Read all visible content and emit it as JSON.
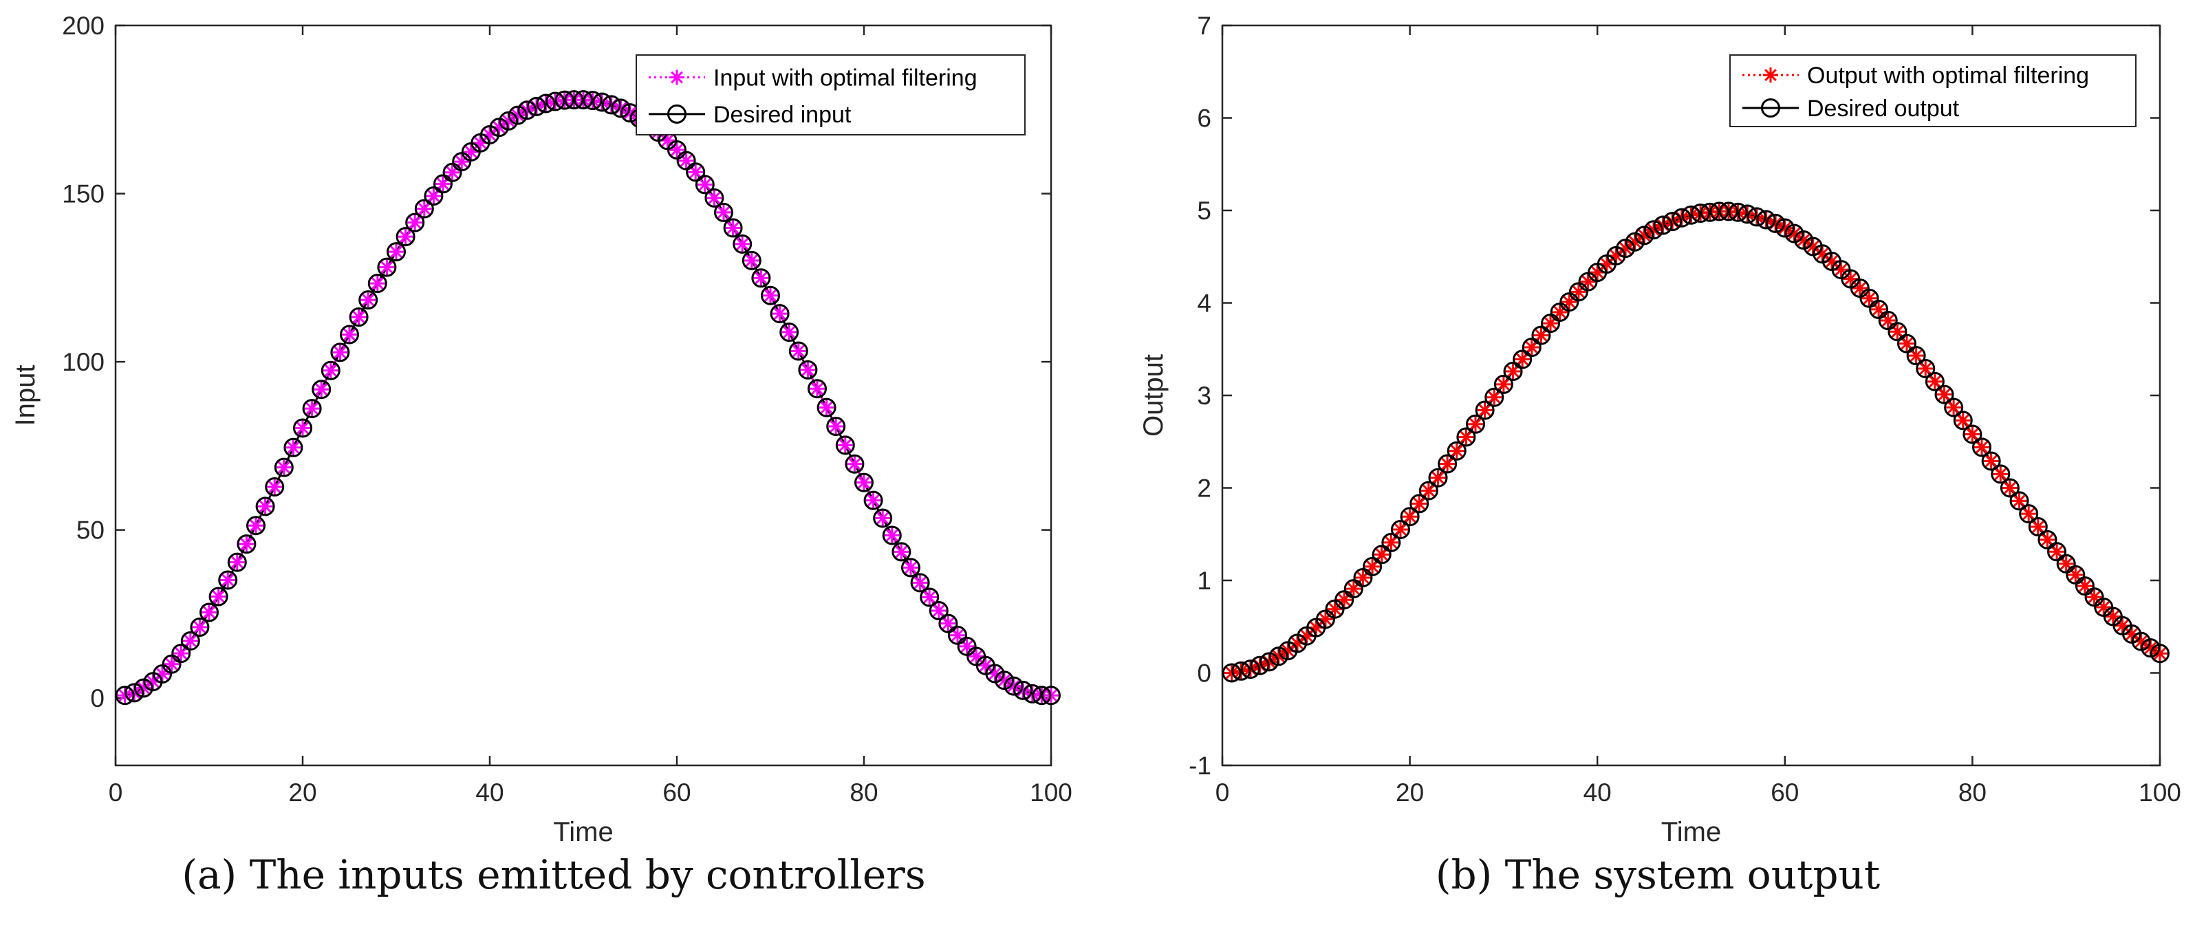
{
  "chart_data": [
    {
      "type": "line",
      "panel": "a",
      "caption": "(a)  The inputs emitted by controllers",
      "xlabel": "Time",
      "ylabel": "Input",
      "xlim": [
        0,
        100
      ],
      "ylim": [
        -20,
        200
      ],
      "xticks": [
        "0",
        "20",
        "40",
        "60",
        "80",
        "100"
      ],
      "yticks": [
        "0",
        "50",
        "100",
        "150",
        "200"
      ],
      "legend_position": "top-right",
      "x": [
        1,
        2,
        3,
        4,
        5,
        6,
        7,
        8,
        9,
        10,
        11,
        12,
        13,
        14,
        15,
        16,
        17,
        18,
        19,
        20,
        21,
        22,
        23,
        24,
        25,
        26,
        27,
        28,
        29,
        30,
        31,
        32,
        33,
        34,
        35,
        36,
        37,
        38,
        39,
        40,
        41,
        42,
        43,
        44,
        45,
        46,
        47,
        48,
        49,
        50,
        51,
        52,
        53,
        54,
        55,
        56,
        57,
        58,
        59,
        60,
        61,
        62,
        63,
        64,
        65,
        66,
        67,
        68,
        69,
        70,
        71,
        72,
        73,
        74,
        75,
        76,
        77,
        78,
        79,
        80,
        81,
        82,
        83,
        84,
        85,
        86,
        87,
        88,
        89,
        90,
        91,
        92,
        93,
        94,
        95,
        96,
        97,
        98,
        99,
        100
      ],
      "series": [
        {
          "name": "Input with optimal filtering",
          "color": "#ff00ff",
          "marker": "asterisk",
          "line_style": "dotted",
          "values": [
            0.8,
            1.6,
            3.0,
            4.9,
            7.2,
            10.1,
            13.3,
            17.0,
            21.1,
            25.5,
            30.2,
            35.1,
            40.4,
            45.8,
            51.3,
            57.0,
            62.8,
            68.6,
            74.5,
            80.3,
            86.1,
            91.8,
            97.4,
            102.8,
            108.1,
            113.3,
            118.4,
            123.3,
            128.1,
            132.7,
            137.2,
            141.4,
            145.5,
            149.3,
            152.9,
            156.3,
            159.5,
            162.4,
            165.1,
            167.5,
            169.7,
            171.6,
            173.3,
            174.8,
            175.9,
            176.8,
            177.4,
            177.8,
            177.9,
            177.9,
            177.7,
            177.2,
            176.4,
            175.4,
            174.0,
            172.4,
            170.5,
            168.3,
            165.8,
            163.0,
            159.8,
            156.4,
            152.7,
            148.7,
            144.4,
            139.8,
            135.0,
            130.1,
            124.9,
            119.7,
            114.3,
            108.8,
            103.2,
            97.6,
            92.0,
            86.4,
            80.8,
            75.2,
            69.6,
            64.1,
            58.8,
            53.5,
            48.4,
            43.5,
            38.8,
            34.3,
            30.0,
            26.0,
            22.2,
            18.7,
            15.4,
            12.4,
            9.7,
            7.3,
            5.3,
            3.6,
            2.3,
            1.3,
            0.8,
            0.8
          ]
        },
        {
          "name": "Desired input",
          "color": "#000000",
          "marker": "circle",
          "line_style": "solid",
          "values": [
            0.8,
            1.6,
            3.0,
            4.9,
            7.2,
            10.1,
            13.3,
            17.0,
            21.1,
            25.5,
            30.2,
            35.1,
            40.4,
            45.8,
            51.3,
            57.0,
            62.8,
            68.6,
            74.5,
            80.3,
            86.1,
            91.8,
            97.4,
            102.8,
            108.1,
            113.3,
            118.4,
            123.3,
            128.1,
            132.7,
            137.2,
            141.4,
            145.5,
            149.3,
            152.9,
            156.3,
            159.5,
            162.4,
            165.1,
            167.5,
            169.7,
            171.6,
            173.3,
            174.8,
            175.9,
            176.8,
            177.4,
            177.8,
            177.9,
            177.9,
            177.7,
            177.2,
            176.4,
            175.4,
            174.0,
            172.4,
            170.5,
            168.3,
            165.8,
            163.0,
            159.8,
            156.4,
            152.7,
            148.7,
            144.4,
            139.8,
            135.0,
            130.1,
            124.9,
            119.7,
            114.3,
            108.8,
            103.2,
            97.6,
            92.0,
            86.4,
            80.8,
            75.2,
            69.6,
            64.1,
            58.8,
            53.5,
            48.4,
            43.5,
            38.8,
            34.3,
            30.0,
            26.0,
            22.2,
            18.7,
            15.4,
            12.4,
            9.7,
            7.3,
            5.3,
            3.6,
            2.3,
            1.3,
            0.8,
            0.8
          ]
        }
      ]
    },
    {
      "type": "line",
      "panel": "b",
      "caption": "(b)  The system output",
      "xlabel": "Time",
      "ylabel": "Output",
      "xlim": [
        0,
        100
      ],
      "ylim": [
        -1,
        7
      ],
      "xticks": [
        "0",
        "20",
        "40",
        "60",
        "80",
        "100"
      ],
      "yticks": [
        "-1",
        "0",
        "1",
        "2",
        "3",
        "4",
        "5",
        "6",
        "7"
      ],
      "legend_position": "top-right",
      "x": [
        1,
        2,
        3,
        4,
        5,
        6,
        7,
        8,
        9,
        10,
        11,
        12,
        13,
        14,
        15,
        16,
        17,
        18,
        19,
        20,
        21,
        22,
        23,
        24,
        25,
        26,
        27,
        28,
        29,
        30,
        31,
        32,
        33,
        34,
        35,
        36,
        37,
        38,
        39,
        40,
        41,
        42,
        43,
        44,
        45,
        46,
        47,
        48,
        49,
        50,
        51,
        52,
        53,
        54,
        55,
        56,
        57,
        58,
        59,
        60,
        61,
        62,
        63,
        64,
        65,
        66,
        67,
        68,
        69,
        70,
        71,
        72,
        73,
        74,
        75,
        76,
        77,
        78,
        79,
        80,
        81,
        82,
        83,
        84,
        85,
        86,
        87,
        88,
        89,
        90,
        91,
        92,
        93,
        94,
        95,
        96,
        97,
        98,
        99,
        100
      ],
      "series": [
        {
          "name": "Output with optimal filtering",
          "color": "#ff0000",
          "marker": "asterisk",
          "line_style": "dotted",
          "values": [
            0.0,
            0.02,
            0.04,
            0.08,
            0.12,
            0.18,
            0.24,
            0.32,
            0.4,
            0.49,
            0.58,
            0.69,
            0.79,
            0.91,
            1.03,
            1.15,
            1.28,
            1.41,
            1.55,
            1.69,
            1.83,
            1.97,
            2.11,
            2.26,
            2.4,
            2.55,
            2.69,
            2.84,
            2.98,
            3.12,
            3.26,
            3.39,
            3.52,
            3.65,
            3.78,
            3.9,
            4.01,
            4.12,
            4.23,
            4.33,
            4.42,
            4.51,
            4.59,
            4.66,
            4.73,
            4.79,
            4.84,
            4.88,
            4.92,
            4.95,
            4.97,
            4.98,
            4.99,
            4.99,
            4.98,
            4.96,
            4.93,
            4.9,
            4.86,
            4.81,
            4.75,
            4.68,
            4.61,
            4.53,
            4.45,
            4.36,
            4.26,
            4.16,
            4.05,
            3.93,
            3.81,
            3.69,
            3.56,
            3.43,
            3.29,
            3.15,
            3.01,
            2.87,
            2.73,
            2.58,
            2.44,
            2.29,
            2.15,
            2.0,
            1.86,
            1.72,
            1.58,
            1.44,
            1.31,
            1.18,
            1.06,
            0.94,
            0.82,
            0.71,
            0.61,
            0.51,
            0.42,
            0.34,
            0.27,
            0.21
          ]
        },
        {
          "name": "Desired output",
          "color": "#000000",
          "marker": "circle",
          "line_style": "solid",
          "values": [
            0.0,
            0.02,
            0.04,
            0.08,
            0.12,
            0.18,
            0.24,
            0.32,
            0.4,
            0.49,
            0.58,
            0.69,
            0.79,
            0.91,
            1.03,
            1.15,
            1.28,
            1.41,
            1.55,
            1.69,
            1.83,
            1.97,
            2.11,
            2.26,
            2.4,
            2.55,
            2.69,
            2.84,
            2.98,
            3.12,
            3.26,
            3.39,
            3.52,
            3.65,
            3.78,
            3.9,
            4.01,
            4.12,
            4.23,
            4.33,
            4.42,
            4.51,
            4.59,
            4.66,
            4.73,
            4.79,
            4.84,
            4.88,
            4.92,
            4.95,
            4.97,
            4.98,
            4.99,
            4.99,
            4.98,
            4.96,
            4.93,
            4.9,
            4.86,
            4.81,
            4.75,
            4.68,
            4.61,
            4.53,
            4.45,
            4.36,
            4.26,
            4.16,
            4.05,
            3.93,
            3.81,
            3.69,
            3.56,
            3.43,
            3.29,
            3.15,
            3.01,
            2.87,
            2.73,
            2.58,
            2.44,
            2.29,
            2.15,
            2.0,
            1.86,
            1.72,
            1.58,
            1.44,
            1.31,
            1.18,
            1.06,
            0.94,
            0.82,
            0.71,
            0.61,
            0.51,
            0.42,
            0.34,
            0.27,
            0.21
          ]
        }
      ]
    }
  ]
}
